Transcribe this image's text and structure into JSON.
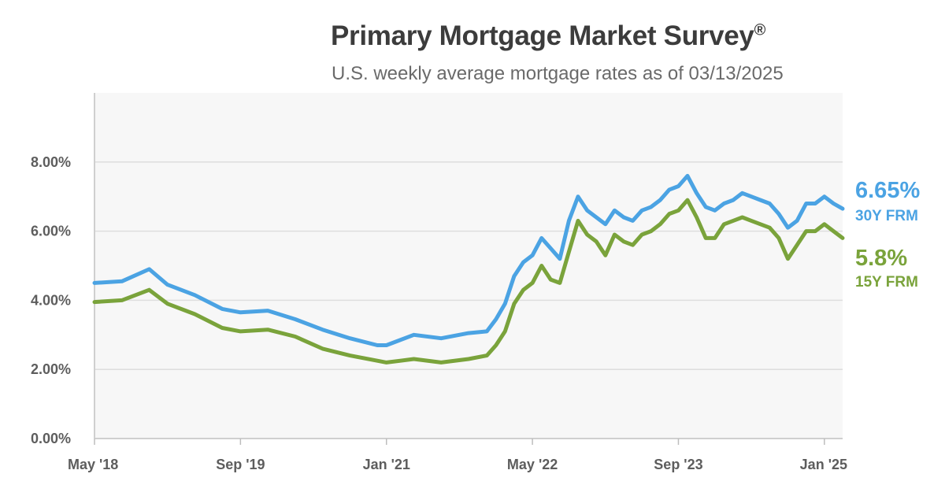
{
  "title": "Primary Mortgage Market Survey",
  "title_mark": "®",
  "subtitle": "U.S. weekly average mortgage rates as of 03/13/2025",
  "colors": {
    "rate30": "#4ba3e3",
    "rate15": "#7aa33b",
    "grid": "#dedede",
    "plot_bg": "#f7f7f7"
  },
  "chart_data": {
    "type": "line",
    "x_range": [
      "2018-05",
      "2025-03"
    ],
    "ylim": [
      0,
      10
    ],
    "yticks": [
      0,
      2,
      4,
      6,
      8
    ],
    "ytick_labels": [
      "0.00%",
      "2.00%",
      "4.00%",
      "6.00%",
      "8.00%"
    ],
    "xticks": [
      "2018-05",
      "2019-09",
      "2021-01",
      "2022-05",
      "2023-09",
      "2025-01"
    ],
    "xtick_labels": [
      "May '18",
      "Sep '19",
      "Jan '21",
      "May '22",
      "Sep '23",
      "Jan '25"
    ],
    "grid": true,
    "legend": "right-end labels",
    "series": [
      {
        "name": "30Y FRM",
        "end_value_label": "6.65%",
        "color": "#4ba3e3",
        "x": [
          "2018-05",
          "2018-08",
          "2018-11",
          "2019-01",
          "2019-04",
          "2019-07",
          "2019-09",
          "2019-12",
          "2020-03",
          "2020-06",
          "2020-09",
          "2020-12",
          "2021-01",
          "2021-04",
          "2021-07",
          "2021-10",
          "2021-12",
          "2022-01",
          "2022-02",
          "2022-03",
          "2022-04",
          "2022-05",
          "2022-06",
          "2022-07",
          "2022-08",
          "2022-09",
          "2022-10",
          "2022-11",
          "2022-12",
          "2023-01",
          "2023-02",
          "2023-03",
          "2023-04",
          "2023-05",
          "2023-06",
          "2023-07",
          "2023-08",
          "2023-09",
          "2023-10",
          "2023-11",
          "2023-12",
          "2024-01",
          "2024-02",
          "2024-03",
          "2024-04",
          "2024-05",
          "2024-06",
          "2024-07",
          "2024-08",
          "2024-09",
          "2024-10",
          "2024-11",
          "2024-12",
          "2025-01",
          "2025-02",
          "2025-03"
        ],
        "y": [
          4.5,
          4.55,
          4.9,
          4.45,
          4.15,
          3.75,
          3.65,
          3.7,
          3.45,
          3.15,
          2.9,
          2.7,
          2.7,
          3.0,
          2.9,
          3.05,
          3.1,
          3.45,
          3.9,
          4.7,
          5.1,
          5.3,
          5.8,
          5.5,
          5.2,
          6.3,
          7.0,
          6.6,
          6.4,
          6.2,
          6.6,
          6.4,
          6.3,
          6.6,
          6.7,
          6.9,
          7.2,
          7.3,
          7.6,
          7.1,
          6.7,
          6.6,
          6.8,
          6.9,
          7.1,
          7.0,
          6.9,
          6.8,
          6.5,
          6.1,
          6.3,
          6.8,
          6.8,
          7.0,
          6.8,
          6.65
        ]
      },
      {
        "name": "15Y FRM",
        "end_value_label": "5.8%",
        "color": "#7aa33b",
        "x": [
          "2018-05",
          "2018-08",
          "2018-11",
          "2019-01",
          "2019-04",
          "2019-07",
          "2019-09",
          "2019-12",
          "2020-03",
          "2020-06",
          "2020-09",
          "2020-12",
          "2021-01",
          "2021-04",
          "2021-07",
          "2021-10",
          "2021-12",
          "2022-01",
          "2022-02",
          "2022-03",
          "2022-04",
          "2022-05",
          "2022-06",
          "2022-07",
          "2022-08",
          "2022-09",
          "2022-10",
          "2022-11",
          "2022-12",
          "2023-01",
          "2023-02",
          "2023-03",
          "2023-04",
          "2023-05",
          "2023-06",
          "2023-07",
          "2023-08",
          "2023-09",
          "2023-10",
          "2023-11",
          "2023-12",
          "2024-01",
          "2024-02",
          "2024-03",
          "2024-04",
          "2024-05",
          "2024-06",
          "2024-07",
          "2024-08",
          "2024-09",
          "2024-10",
          "2024-11",
          "2024-12",
          "2025-01",
          "2025-02",
          "2025-03"
        ],
        "y": [
          3.95,
          4.0,
          4.3,
          3.9,
          3.6,
          3.2,
          3.1,
          3.15,
          2.95,
          2.6,
          2.4,
          2.25,
          2.2,
          2.3,
          2.2,
          2.3,
          2.4,
          2.7,
          3.1,
          3.9,
          4.3,
          4.5,
          5.0,
          4.6,
          4.5,
          5.4,
          6.3,
          5.9,
          5.7,
          5.3,
          5.9,
          5.7,
          5.6,
          5.9,
          6.0,
          6.2,
          6.5,
          6.6,
          6.9,
          6.4,
          5.8,
          5.8,
          6.2,
          6.3,
          6.4,
          6.3,
          6.2,
          6.1,
          5.8,
          5.2,
          5.6,
          6.0,
          6.0,
          6.2,
          6.0,
          5.8
        ]
      }
    ]
  }
}
